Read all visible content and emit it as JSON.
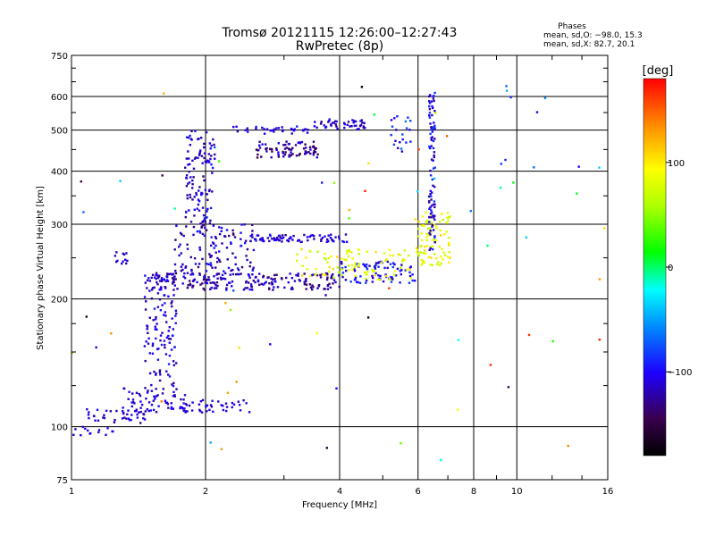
{
  "header": {
    "title_line1": "Tromsø 20121115 12:26:00–12:27:43",
    "title_line2": "RwPretec (8p)",
    "phases_heading": "Phases",
    "phases_line1": "mean, sd,O: −98.0, 15.3",
    "phases_line2": "mean, sd,X:  82.7, 20.1"
  },
  "colorbar": {
    "unit_label": "[deg]",
    "range": [
      -180,
      180
    ],
    "tick_values": [
      100,
      0,
      -100
    ],
    "tick_labels": [
      "100",
      "0",
      "−100"
    ]
  },
  "chart_data": {
    "type": "scatter",
    "title": "Tromsø 20121115 12:26:00–12:27:43",
    "subtitle": "RwPretec (8p)",
    "xlabel": "Frequency [MHz]",
    "ylabel": "Stationary phase Virtual Height [km]",
    "xscale": "log",
    "yscale": "log",
    "xlim": [
      1,
      16
    ],
    "ylim": [
      75,
      750
    ],
    "x_ticks": [
      1,
      2,
      4,
      6,
      8,
      10,
      16
    ],
    "x_tick_labels": [
      "1",
      "2",
      "4",
      "6",
      "8",
      "10",
      "16"
    ],
    "y_ticks": [
      75,
      100,
      200,
      300,
      400,
      500,
      600,
      750
    ],
    "y_tick_labels": [
      "75",
      "100",
      "200",
      "300",
      "400",
      "500",
      "600",
      "750"
    ],
    "grid": true,
    "point_series": [
      {
        "x_range": [
          1.0,
          1.25
        ],
        "y_range": [
          95,
          100
        ],
        "n": 14,
        "color_range": [
          -120,
          -100
        ]
      },
      {
        "x_range": [
          1.05,
          1.5
        ],
        "y_range": [
          102,
          110
        ],
        "n": 40,
        "color_range": [
          -130,
          -95
        ]
      },
      {
        "x_range": [
          1.3,
          1.8
        ],
        "y_range": [
          108,
          125
        ],
        "n": 60,
        "color_range": [
          -125,
          -95
        ]
      },
      {
        "x_range": [
          1.75,
          2.55
        ],
        "y_range": [
          108,
          116
        ],
        "n": 45,
        "color_range": [
          -120,
          -95
        ]
      },
      {
        "x_range": [
          1.45,
          1.72
        ],
        "y_range": [
          125,
          230
        ],
        "n": 120,
        "color_range": [
          -130,
          -90
        ]
      },
      {
        "x_range": [
          1.25,
          1.35
        ],
        "y_range": [
          242,
          258
        ],
        "n": 12,
        "color_range": [
          -120,
          -100
        ]
      },
      {
        "x_range": [
          1.5,
          4.0
        ],
        "y_range": [
          210,
          230
        ],
        "n": 200,
        "color_range": [
          -140,
          -100
        ]
      },
      {
        "x_range": [
          4.0,
          6.0
        ],
        "y_range": [
          218,
          245
        ],
        "n": 80,
        "color_range": [
          -120,
          -80
        ]
      },
      {
        "x_range": [
          3.2,
          5.8
        ],
        "y_range": [
          222,
          262
        ],
        "n": 90,
        "color_range": [
          60,
          110
        ]
      },
      {
        "x_range": [
          5.9,
          7.1
        ],
        "y_range": [
          240,
          320
        ],
        "n": 90,
        "color_range": [
          60,
          110
        ]
      },
      {
        "x_range": [
          6.35,
          6.55
        ],
        "y_range": [
          260,
          620
        ],
        "n": 90,
        "color_range": [
          -130,
          -80
        ]
      },
      {
        "x_range": [
          1.7,
          2.6
        ],
        "y_range": [
          225,
          300
        ],
        "n": 130,
        "color_range": [
          -140,
          -90
        ]
      },
      {
        "x_range": [
          1.8,
          2.1
        ],
        "y_range": [
          300,
          500
        ],
        "n": 110,
        "color_range": [
          -130,
          -90
        ]
      },
      {
        "x_range": [
          2.5,
          4.2
        ],
        "y_range": [
          272,
          284
        ],
        "n": 80,
        "color_range": [
          -130,
          -90
        ]
      },
      {
        "x_range": [
          2.6,
          3.6
        ],
        "y_range": [
          430,
          470
        ],
        "n": 80,
        "color_range": [
          -150,
          -100
        ]
      },
      {
        "x_range": [
          3.5,
          4.6
        ],
        "y_range": [
          500,
          530
        ],
        "n": 45,
        "color_range": [
          -130,
          -90
        ]
      },
      {
        "x_range": [
          2.3,
          3.4
        ],
        "y_range": [
          490,
          510
        ],
        "n": 35,
        "color_range": [
          -130,
          -90
        ]
      },
      {
        "x_range": [
          5.2,
          5.8
        ],
        "y_range": [
          450,
          540
        ],
        "n": 20,
        "color_range": [
          -120,
          -60
        ]
      },
      {
        "x_range": [
          1.0,
          16.0
        ],
        "y_range": [
          80,
          650
        ],
        "n": 70,
        "color_range": [
          -180,
          180
        ]
      }
    ]
  }
}
